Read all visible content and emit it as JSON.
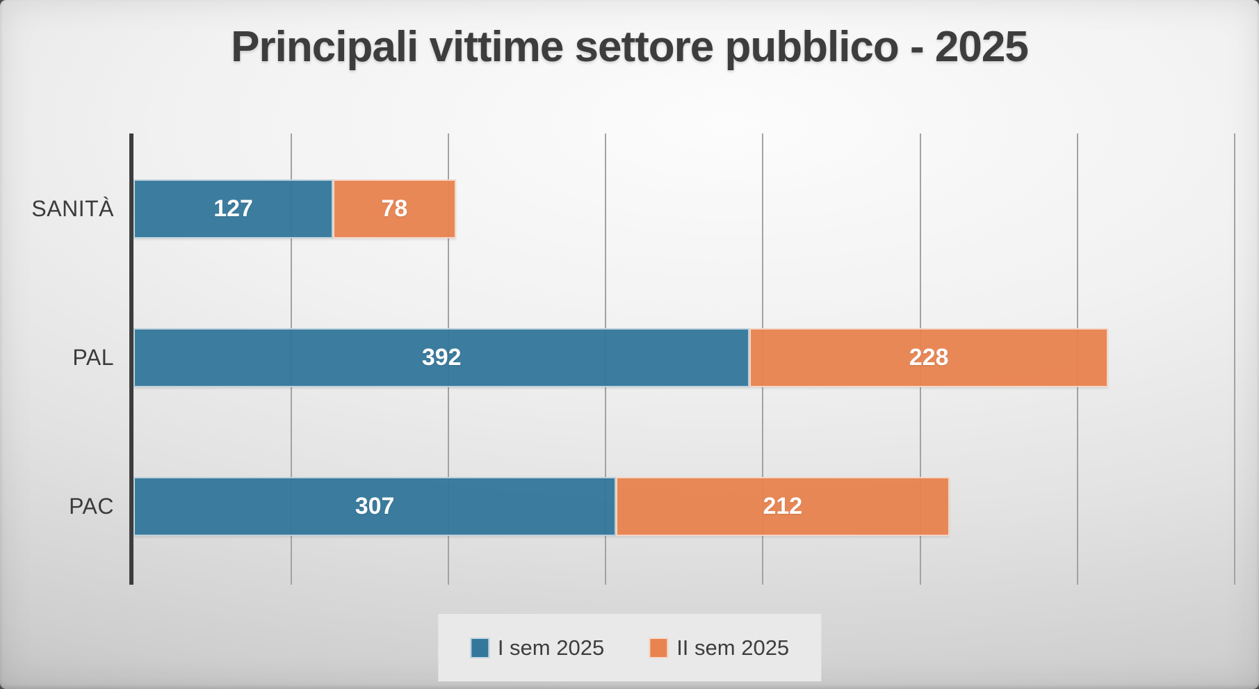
{
  "chart_data": {
    "type": "bar",
    "orientation": "horizontal",
    "stacked": true,
    "title": "Principali vittime settore pubblico - 2025",
    "categories": [
      "SANITÀ",
      "PAL",
      "PAC"
    ],
    "series": [
      {
        "name": "I sem 2025",
        "color": "#33779B",
        "values": [
          127,
          392,
          307
        ]
      },
      {
        "name": "II sem 2025",
        "color": "#E9834F",
        "values": [
          78,
          228,
          212
        ]
      }
    ],
    "totals": [
      205,
      620,
      519
    ],
    "xlim": [
      0,
      716
    ],
    "gridline_interval": 100,
    "grid": true,
    "legend_position": "bottom",
    "value_labels": "inside-center"
  },
  "colors": {
    "axis": "#3D3D3D",
    "gridline": "#A2A2A2",
    "title_text": "#3D3D3D",
    "category_text": "#3B3B3B",
    "value_text": "#FFFFFF",
    "legend_bg": "#E9E9E9",
    "legend_text": "#3D3D3D"
  }
}
